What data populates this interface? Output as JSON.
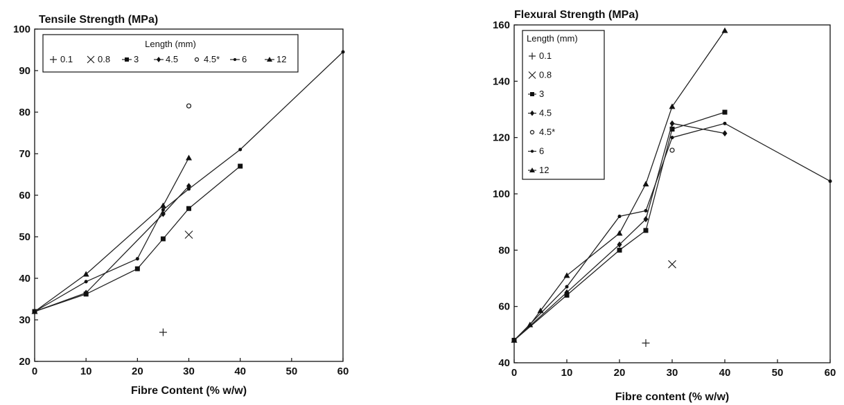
{
  "chart_data": [
    {
      "type": "line",
      "title": "Tensile Strength (MPa)",
      "xlabel": "Fibre Content (% w/w)",
      "ylabel": "",
      "xlim": [
        0,
        60
      ],
      "ylim": [
        20,
        100
      ],
      "x_ticks": [
        "0",
        "10",
        "20",
        "30",
        "40",
        "50",
        "60"
      ],
      "y_ticks": [
        "20",
        "30",
        "40",
        "50",
        "60",
        "70",
        "80",
        "90",
        "100"
      ],
      "grid": false,
      "legend": {
        "title": "Length (mm)",
        "placement": "top-left",
        "layout": "row",
        "entries": [
          "0.1",
          "0.8",
          "3",
          "4.5",
          "4.5*",
          "6",
          "12"
        ]
      },
      "series": [
        {
          "name": "0.1",
          "marker": "plus",
          "line": false,
          "points": [
            [
              25,
              27
            ]
          ]
        },
        {
          "name": "0.8",
          "marker": "cross",
          "line": false,
          "points": [
            [
              30,
              50.5
            ]
          ]
        },
        {
          "name": "3",
          "marker": "square",
          "line": true,
          "points": [
            [
              0,
              32
            ],
            [
              10,
              36.2
            ],
            [
              20,
              42.3
            ],
            [
              25,
              49.5
            ],
            [
              30,
              56.8
            ],
            [
              40,
              67
            ]
          ]
        },
        {
          "name": "4.5",
          "marker": "diamond",
          "line": true,
          "points": [
            [
              0,
              32
            ],
            [
              10,
              36.5
            ],
            [
              25,
              55.5
            ],
            [
              30,
              62.2
            ]
          ]
        },
        {
          "name": "4.5*",
          "marker": "open-circle",
          "line": false,
          "points": [
            [
              30,
              81.5
            ]
          ]
        },
        {
          "name": "6",
          "marker": "dot",
          "line": true,
          "points": [
            [
              0,
              32
            ],
            [
              10,
              39.2
            ],
            [
              20,
              44.7
            ],
            [
              25,
              56.5
            ],
            [
              30,
              61.5
            ],
            [
              40,
              71
            ],
            [
              60,
              94.5
            ]
          ]
        },
        {
          "name": "12",
          "marker": "triangle",
          "line": true,
          "points": [
            [
              0,
              32
            ],
            [
              10,
              41
            ],
            [
              25,
              57.5
            ],
            [
              30,
              69
            ]
          ]
        }
      ]
    },
    {
      "type": "line",
      "title": "Flexural Strength (MPa)",
      "xlabel": "Fibre content (% w/w)",
      "ylabel": "",
      "xlim": [
        0,
        60
      ],
      "ylim": [
        40,
        160
      ],
      "x_ticks": [
        "0",
        "10",
        "20",
        "30",
        "40",
        "50",
        "60"
      ],
      "y_ticks": [
        "40",
        "60",
        "80",
        "100",
        "120",
        "140",
        "160"
      ],
      "grid": false,
      "legend": {
        "title": "Length (mm)",
        "placement": "top-left",
        "layout": "column",
        "entries": [
          "0.1",
          "0.8",
          "3",
          "4.5",
          "4.5*",
          "6",
          "12"
        ]
      },
      "series": [
        {
          "name": "0.1",
          "marker": "plus",
          "line": false,
          "points": [
            [
              25,
              47
            ]
          ]
        },
        {
          "name": "0.8",
          "marker": "cross",
          "line": false,
          "points": [
            [
              30,
              75
            ]
          ]
        },
        {
          "name": "3",
          "marker": "square",
          "line": true,
          "points": [
            [
              0,
              48
            ],
            [
              10,
              64
            ],
            [
              20,
              80
            ],
            [
              25,
              87
            ],
            [
              30,
              123
            ],
            [
              40,
              129
            ]
          ]
        },
        {
          "name": "4.5",
          "marker": "diamond",
          "line": true,
          "points": [
            [
              0,
              48
            ],
            [
              10,
              65
            ],
            [
              20,
              82
            ],
            [
              25,
              91
            ],
            [
              30,
              125
            ],
            [
              40,
              121.5
            ]
          ]
        },
        {
          "name": "4.5*",
          "marker": "open-circle",
          "line": false,
          "points": [
            [
              30,
              115.5
            ]
          ]
        },
        {
          "name": "6",
          "marker": "dot",
          "line": true,
          "points": [
            [
              0,
              48
            ],
            [
              10,
              67
            ],
            [
              20,
              92
            ],
            [
              25,
              94
            ],
            [
              30,
              120
            ],
            [
              40,
              125
            ],
            [
              60,
              104.5
            ]
          ]
        },
        {
          "name": "12",
          "marker": "triangle",
          "line": true,
          "points": [
            [
              0,
              48
            ],
            [
              3,
              53.5
            ],
            [
              5,
              58.5
            ],
            [
              10,
              71
            ],
            [
              20,
              86
            ],
            [
              25,
              103.5
            ],
            [
              30,
              131
            ],
            [
              40,
              158
            ]
          ]
        }
      ]
    }
  ]
}
